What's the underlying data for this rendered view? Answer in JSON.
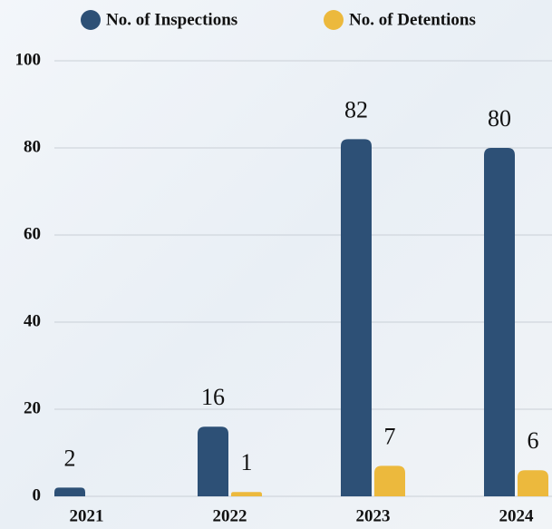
{
  "chart_data": {
    "type": "bar",
    "categories": [
      "2021",
      "2022",
      "2023",
      "2024"
    ],
    "series": [
      {
        "name": "No. of Inspections",
        "color": "#2d5076",
        "values": [
          2,
          16,
          82,
          80
        ]
      },
      {
        "name": "No. of Detentions",
        "color": "#ecb93d",
        "values": [
          null,
          1,
          7,
          6
        ]
      }
    ],
    "ylim": [
      0,
      100
    ],
    "yticks": [
      0,
      20,
      40,
      60,
      80,
      100
    ],
    "grid": true,
    "legend": "top"
  }
}
